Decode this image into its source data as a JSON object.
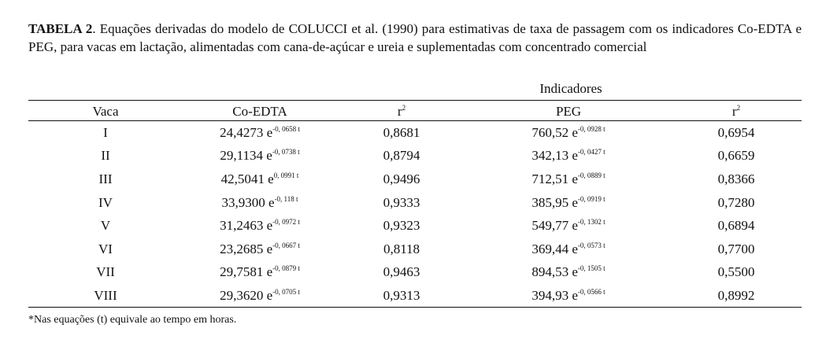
{
  "caption": {
    "label": "TABELA 2",
    "text": ". Equações derivadas do modelo de COLUCCI et al. (1990) para estimativas de taxa de passagem com os indicadores Co-EDTA e PEG, para vacas em lactação, alimentadas com cana-de-açúcar e ureia e suplementadas com concentrado comercial"
  },
  "group_header": "Indicadores",
  "headers": [
    "Vaca",
    "Co-EDTA",
    "r",
    "PEG",
    "r"
  ],
  "r_sup": "2",
  "rows": [
    {
      "vaca": "I",
      "co": "24,4273 e",
      "co_exp": "-0, 0658 t",
      "r1": "0,8681",
      "peg": "760,52 e",
      "peg_exp": "-0, 0928 t",
      "r2": "0,6954"
    },
    {
      "vaca": "II",
      "co": "29,1134 e",
      "co_exp": "-0, 0738 t",
      "r1": "0,8794",
      "peg": "342,13 e",
      "peg_exp": "-0, 0427 t",
      "r2": "0,6659"
    },
    {
      "vaca": "III",
      "co": "42,5041 e",
      "co_exp": "0, 0991 t",
      "r1": "0,9496",
      "peg": "712,51 e",
      "peg_exp": "-0, 0889 t",
      "r2": "0,8366"
    },
    {
      "vaca": "IV",
      "co": "33,9300 e",
      "co_exp": "-0, 118 t",
      "r1": "0,9333",
      "peg": "385,95 e",
      "peg_exp": "-0, 0919 t",
      "r2": "0,7280"
    },
    {
      "vaca": "V",
      "co": "31,2463 e",
      "co_exp": "-0, 0972 t",
      "r1": "0,9323",
      "peg": "549,77 e",
      "peg_exp": "-0, 1302 t",
      "r2": "0,6894"
    },
    {
      "vaca": "VI",
      "co": "23,2685 e",
      "co_exp": "-0, 0667 t",
      "r1": "0,8118",
      "peg": "369,44 e",
      "peg_exp": "-0, 0573 t",
      "r2": "0,7700"
    },
    {
      "vaca": "VII",
      "co": "29,7581 e",
      "co_exp": "-0, 0879 t",
      "r1": "0,9463",
      "peg": "894,53 e",
      "peg_exp": "-0, 1505 t",
      "r2": "0,5500"
    },
    {
      "vaca": "VIII",
      "co": "29,3620 e",
      "co_exp": "-0, 0705 t",
      "r1": "0,9313",
      "peg": "394,93 e",
      "peg_exp": "-0, 0566 t",
      "r2": "0,8992"
    }
  ],
  "footnote": "*Nas equações (t) equivale ao tempo em horas."
}
